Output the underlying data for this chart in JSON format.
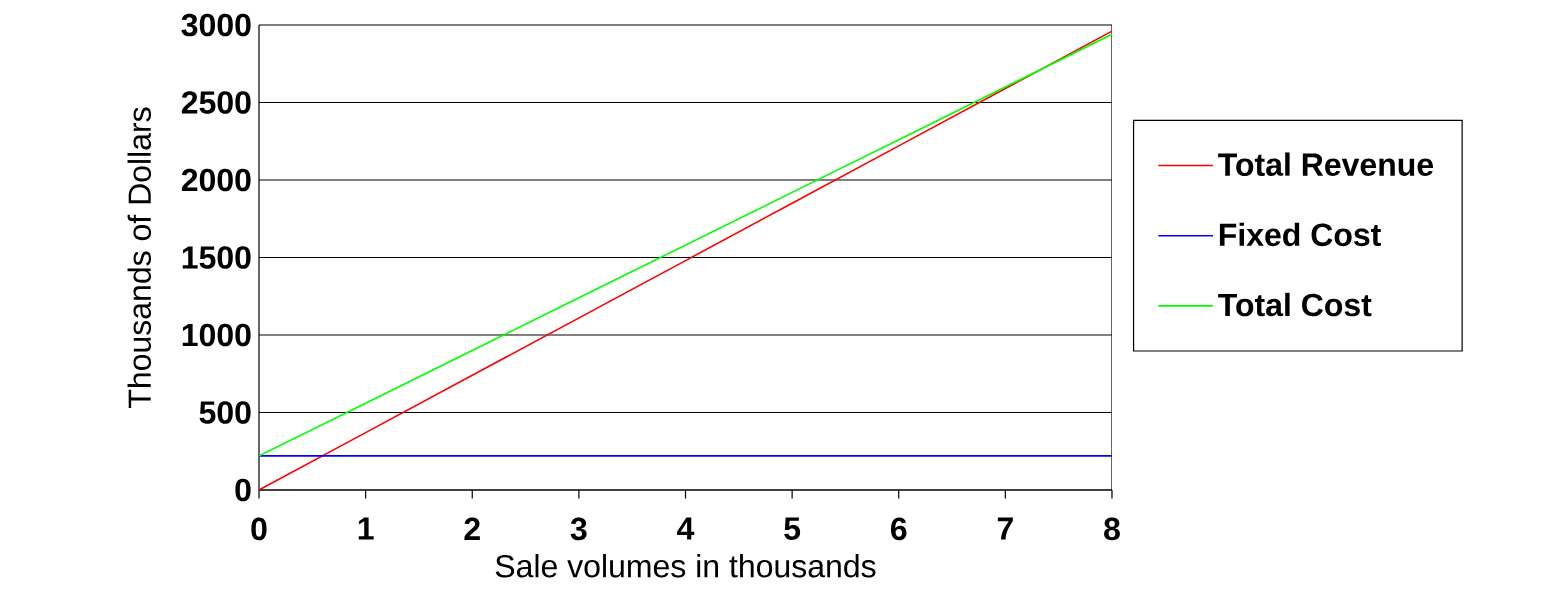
{
  "chart_data": {
    "type": "line",
    "xlabel": "Sale volumes in thousands",
    "ylabel": "Thousands of Dollars",
    "x": [
      0,
      1,
      2,
      3,
      4,
      5,
      6,
      7,
      8
    ],
    "series": [
      {
        "name": "Total Revenue",
        "color": "#ff0000",
        "values": [
          0,
          370,
          740,
          1110,
          1480,
          1850,
          2220,
          2590,
          2960
        ]
      },
      {
        "name": "Fixed Cost",
        "color": "#0000ff",
        "values": [
          220,
          220,
          220,
          220,
          220,
          220,
          220,
          220,
          220
        ]
      },
      {
        "name": "Total Cost",
        "color": "#00ff00",
        "values": [
          220,
          560,
          900,
          1240,
          1580,
          1920,
          2260,
          2600,
          2940
        ]
      }
    ],
    "xlim": [
      0,
      8
    ],
    "ylim": [
      0,
      3000
    ],
    "xticks": [
      0,
      1,
      2,
      3,
      4,
      5,
      6,
      7,
      8
    ],
    "yticks": [
      0,
      500,
      1000,
      1500,
      2000,
      2500,
      3000
    ],
    "grid": "y",
    "legend": "right",
    "marker": "none",
    "line_style": "solid"
  }
}
